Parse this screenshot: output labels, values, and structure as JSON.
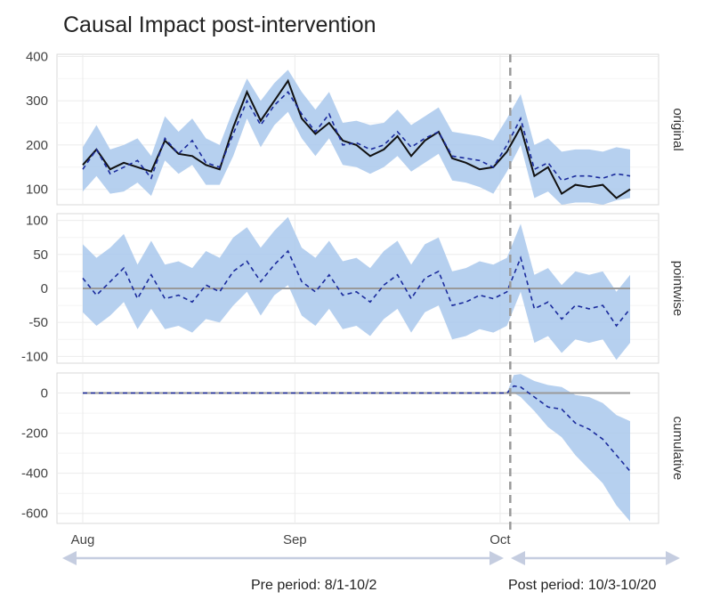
{
  "title": "Causal Impact post-intervention",
  "colors": {
    "band": "#a9c8ec",
    "predicted": "#1a2a9c",
    "actual": "#111111",
    "zero_line": "#9a9a9a",
    "intervention": "#9a9a9a",
    "panel_border": "#d9d9d9",
    "grid": "#ebebeb",
    "arrow": "#c5cde0"
  },
  "x_axis": {
    "ticks": [
      {
        "label": "Aug",
        "date": "2019-08-01"
      },
      {
        "label": "Sep",
        "date": "2019-09-01"
      },
      {
        "label": "Oct",
        "date": "2019-10-01"
      }
    ]
  },
  "intervention_date": "2019-10-03",
  "annotations": {
    "pre_period": "Pre period: 8/1-10/2",
    "post_period": "Post period: 10/3-10/20"
  },
  "chart_data": [
    {
      "type": "line",
      "panel": "original",
      "ylim": [
        65,
        405
      ],
      "yticks": [
        100,
        200,
        300,
        400
      ],
      "grid": true,
      "x": [
        "2019-08-01",
        "2019-08-03",
        "2019-08-05",
        "2019-08-07",
        "2019-08-09",
        "2019-08-11",
        "2019-08-13",
        "2019-08-15",
        "2019-08-17",
        "2019-08-19",
        "2019-08-21",
        "2019-08-23",
        "2019-08-25",
        "2019-08-27",
        "2019-08-29",
        "2019-08-31",
        "2019-09-02",
        "2019-09-04",
        "2019-09-06",
        "2019-09-08",
        "2019-09-10",
        "2019-09-12",
        "2019-09-14",
        "2019-09-16",
        "2019-09-18",
        "2019-09-20",
        "2019-09-22",
        "2019-09-24",
        "2019-09-26",
        "2019-09-28",
        "2019-09-30",
        "2019-10-02",
        "2019-10-04",
        "2019-10-06",
        "2019-10-08",
        "2019-10-10",
        "2019-10-12",
        "2019-10-14",
        "2019-10-16",
        "2019-10-18",
        "2019-10-20"
      ],
      "series": [
        {
          "role": "actual",
          "style": "solid",
          "values": [
            155,
            190,
            145,
            160,
            150,
            140,
            210,
            180,
            175,
            155,
            145,
            240,
            320,
            255,
            300,
            345,
            260,
            225,
            250,
            210,
            200,
            175,
            190,
            220,
            175,
            210,
            230,
            170,
            160,
            145,
            150,
            185,
            240,
            130,
            150,
            90,
            110,
            105,
            110,
            80,
            100
          ]
        },
        {
          "role": "predicted",
          "style": "dashed",
          "values": [
            145,
            190,
            135,
            150,
            165,
            125,
            215,
            180,
            210,
            160,
            150,
            225,
            300,
            245,
            290,
            320,
            270,
            230,
            270,
            200,
            205,
            190,
            200,
            230,
            195,
            215,
            230,
            175,
            170,
            165,
            150,
            200,
            260,
            145,
            160,
            120,
            130,
            130,
            125,
            135,
            130
          ]
        },
        {
          "role": "interval",
          "lower": [
            95,
            130,
            90,
            95,
            115,
            85,
            165,
            135,
            155,
            110,
            110,
            175,
            260,
            195,
            245,
            275,
            215,
            175,
            215,
            155,
            150,
            135,
            150,
            175,
            140,
            160,
            180,
            120,
            115,
            105,
            90,
            140,
            200,
            80,
            95,
            65,
            70,
            70,
            65,
            75,
            80
          ],
          "upper": [
            195,
            245,
            190,
            200,
            215,
            175,
            265,
            230,
            260,
            215,
            200,
            280,
            350,
            300,
            340,
            370,
            320,
            280,
            320,
            250,
            255,
            245,
            250,
            280,
            245,
            265,
            285,
            230,
            225,
            220,
            210,
            260,
            315,
            200,
            215,
            185,
            190,
            190,
            185,
            195,
            190
          ]
        }
      ]
    },
    {
      "type": "line",
      "panel": "pointwise",
      "ylim": [
        -110,
        110
      ],
      "yticks": [
        -100,
        -50,
        0,
        50,
        100
      ],
      "grid": true,
      "x": [
        "2019-08-01",
        "2019-08-03",
        "2019-08-05",
        "2019-08-07",
        "2019-08-09",
        "2019-08-11",
        "2019-08-13",
        "2019-08-15",
        "2019-08-17",
        "2019-08-19",
        "2019-08-21",
        "2019-08-23",
        "2019-08-25",
        "2019-08-27",
        "2019-08-29",
        "2019-08-31",
        "2019-09-02",
        "2019-09-04",
        "2019-09-06",
        "2019-09-08",
        "2019-09-10",
        "2019-09-12",
        "2019-09-14",
        "2019-09-16",
        "2019-09-18",
        "2019-09-20",
        "2019-09-22",
        "2019-09-24",
        "2019-09-26",
        "2019-09-28",
        "2019-09-30",
        "2019-10-02",
        "2019-10-04",
        "2019-10-06",
        "2019-10-08",
        "2019-10-10",
        "2019-10-12",
        "2019-10-14",
        "2019-10-16",
        "2019-10-18",
        "2019-10-20"
      ],
      "series": [
        {
          "role": "predicted",
          "style": "dashed",
          "values": [
            15,
            -10,
            10,
            30,
            -15,
            20,
            -15,
            -10,
            -20,
            5,
            -5,
            25,
            40,
            10,
            35,
            55,
            10,
            -5,
            20,
            -10,
            -5,
            -20,
            5,
            20,
            -15,
            15,
            25,
            -25,
            -20,
            -10,
            -15,
            -5,
            45,
            -30,
            -20,
            -45,
            -25,
            -30,
            -25,
            -55,
            -30
          ]
        },
        {
          "role": "interval",
          "lower": [
            -35,
            -55,
            -40,
            -20,
            -60,
            -30,
            -60,
            -55,
            -65,
            -45,
            -50,
            -25,
            -5,
            -40,
            -10,
            5,
            -40,
            -55,
            -30,
            -60,
            -55,
            -70,
            -45,
            -30,
            -65,
            -35,
            -25,
            -75,
            -70,
            -60,
            -65,
            -55,
            -5,
            -80,
            -70,
            -95,
            -75,
            -80,
            -75,
            -105,
            -80
          ]
        },
        {
          "role": "interval_upper",
          "upper": [
            65,
            45,
            60,
            80,
            35,
            70,
            35,
            40,
            30,
            55,
            45,
            75,
            90,
            60,
            85,
            105,
            60,
            45,
            70,
            40,
            45,
            30,
            55,
            70,
            35,
            65,
            75,
            25,
            30,
            40,
            35,
            45,
            95,
            20,
            30,
            5,
            25,
            20,
            25,
            -5,
            20
          ]
        }
      ]
    },
    {
      "type": "line",
      "panel": "cumulative",
      "ylim": [
        -650,
        100
      ],
      "yticks": [
        -600,
        -400,
        -200,
        0
      ],
      "grid": true,
      "x": [
        "2019-08-01",
        "2019-08-10",
        "2019-08-20",
        "2019-08-30",
        "2019-09-10",
        "2019-09-20",
        "2019-09-30",
        "2019-10-02",
        "2019-10-03",
        "2019-10-04",
        "2019-10-06",
        "2019-10-08",
        "2019-10-10",
        "2019-10-12",
        "2019-10-14",
        "2019-10-16",
        "2019-10-18",
        "2019-10-20"
      ],
      "series": [
        {
          "role": "predicted",
          "style": "dashed",
          "values": [
            0,
            0,
            0,
            0,
            0,
            0,
            0,
            0,
            35,
            30,
            -20,
            -70,
            -80,
            -150,
            -180,
            -230,
            -310,
            -390
          ]
        },
        {
          "role": "interval",
          "lower": [
            0,
            0,
            0,
            0,
            0,
            0,
            0,
            0,
            0,
            -20,
            -90,
            -170,
            -220,
            -310,
            -380,
            -450,
            -560,
            -640
          ],
          "upper": [
            0,
            0,
            0,
            0,
            0,
            0,
            0,
            0,
            90,
            95,
            60,
            40,
            30,
            -10,
            -20,
            -50,
            -110,
            -140
          ]
        }
      ]
    }
  ],
  "panels": [
    {
      "strip_label": "original"
    },
    {
      "strip_label": "pointwise"
    },
    {
      "strip_label": "cumulative"
    }
  ]
}
